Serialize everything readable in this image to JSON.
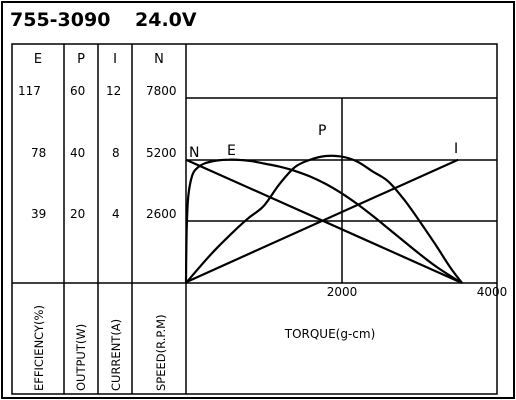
{
  "chart_data": {
    "type": "line",
    "title": "755-3090",
    "voltage": "24.0V",
    "columns": [
      {
        "header": "E",
        "label": "EFFICIENCY(%)",
        "ticks": [
          "117",
          "78",
          "39"
        ]
      },
      {
        "header": "P",
        "label": "OUTPUT(W)",
        "ticks": [
          "60",
          "40",
          "20"
        ]
      },
      {
        "header": "I",
        "label": "CURRENT(A)",
        "ticks": [
          "12",
          "8",
          "4"
        ]
      },
      {
        "header": "N",
        "label": "SPEED(R.P.M)",
        "ticks": [
          "7800",
          "5200",
          "2600"
        ]
      }
    ],
    "xlabel": "TORQUE(g-cm)",
    "x_ticks": [
      "2000",
      "4000"
    ],
    "xlim": [
      0,
      4000
    ],
    "grid": true,
    "series": [
      {
        "name": "N",
        "axis": "N",
        "x": [
          0,
          3550
        ],
        "y": [
          5200,
          0
        ]
      },
      {
        "name": "I",
        "axis": "I",
        "x": [
          0,
          3500
        ],
        "y": [
          0.05,
          8.0
        ]
      },
      {
        "name": "P",
        "axis": "P",
        "x": [
          0,
          200,
          400,
          600,
          800,
          1000,
          1200,
          1400,
          1600,
          1800,
          2000,
          2200,
          2400,
          2600,
          2800,
          3000,
          3200,
          3400,
          3550
        ],
        "y": [
          0,
          5.9,
          11.4,
          16.4,
          21.0,
          25.0,
          32.0,
          37.6,
          40.0,
          41.2,
          41.0,
          39.4,
          36.2,
          33.0,
          27.2,
          20.2,
          12.8,
          5.0,
          0
        ]
      },
      {
        "name": "E",
        "axis": "E",
        "x": [
          0,
          3,
          10,
          30,
          80,
          150,
          250,
          400,
          550,
          700,
          850,
          1000,
          1200,
          1400,
          1600,
          1800,
          2000,
          2200,
          2400,
          2600,
          2800,
          3000,
          3200,
          3400,
          3550
        ],
        "y": [
          0,
          15,
          36,
          55,
          68,
          73,
          75.8,
          77.5,
          78,
          77.8,
          77.0,
          75.6,
          73.6,
          70.9,
          67.3,
          62.6,
          56.8,
          50.0,
          42.5,
          34.5,
          26.5,
          18.5,
          11.0,
          4.5,
          0
        ]
      }
    ]
  }
}
